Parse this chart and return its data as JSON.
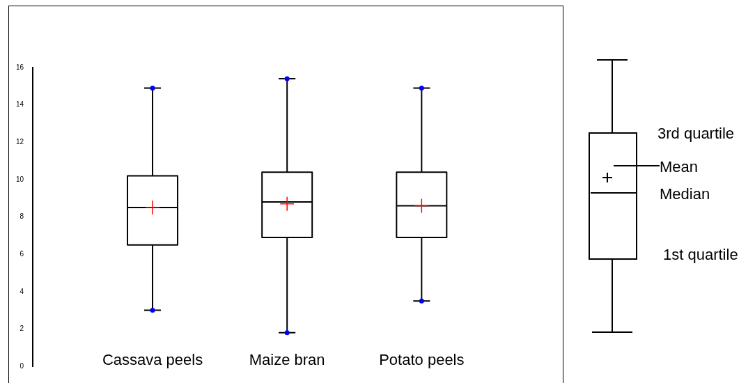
{
  "chart_data": {
    "type": "box",
    "categories": [
      "Cassava peels",
      "Maize bran",
      "Potato peels"
    ],
    "series": [
      {
        "color": "#000000",
        "boxes": [
          {
            "low": 3.0,
            "q1": 6.5,
            "median": 8.5,
            "q3": 10.2,
            "high": 14.9
          },
          {
            "low": 1.8,
            "q1": 6.9,
            "median": 8.8,
            "q3": 10.4,
            "high": 15.4
          },
          {
            "low": 3.5,
            "q1": 6.9,
            "median": 8.6,
            "q3": 10.4,
            "high": 14.9
          }
        ]
      },
      {
        "type": "scatter",
        "color": "#0000ff",
        "marker": "circle",
        "x": [
          "Cassava peels",
          "Cassava peels",
          "Maize bran",
          "Maize bran",
          "Potato peels",
          "Potato peels"
        ],
        "values": [
          14.9,
          3.0,
          15.4,
          1.8,
          14.9,
          3.5
        ]
      },
      {
        "type": "scatter",
        "color": "#ff0000",
        "marker": "cross",
        "x": [
          "Cassava peels",
          "Maize bran",
          "Potato peels"
        ],
        "values": [
          8.5,
          8.7,
          8.6
        ]
      }
    ],
    "ylim": [
      0,
      16
    ],
    "yticks": [
      0,
      2,
      4,
      6,
      8,
      10,
      12,
      14,
      16
    ],
    "annotations": [
      "3rd quartile",
      "Mean",
      "Median",
      "1st quartile"
    ],
    "grid": false,
    "legend": false
  }
}
